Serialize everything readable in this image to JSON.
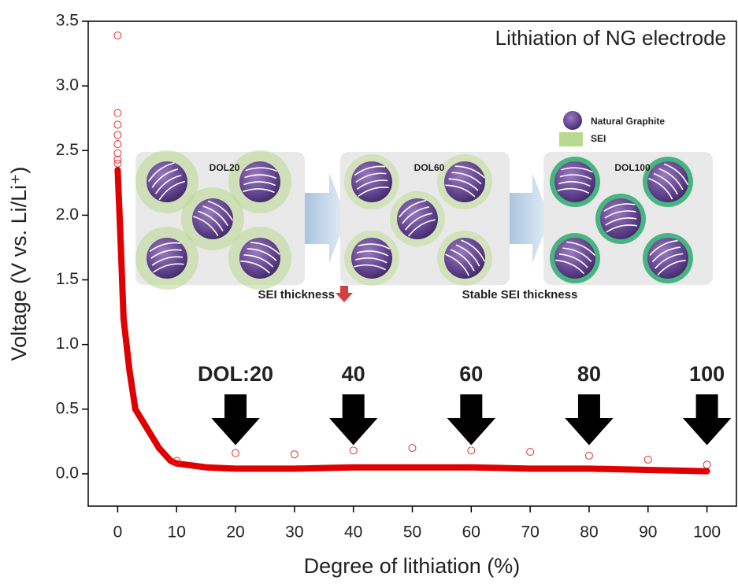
{
  "chart_data": {
    "type": "line",
    "title": "Lithiation of NG electrode",
    "xlabel": "Degree of lithiation (%)",
    "ylabel": "Voltage (V vs. Li/Li⁺)",
    "xlim": [
      -5,
      105
    ],
    "ylim": [
      -0.25,
      3.5
    ],
    "xticks": [
      0,
      10,
      20,
      30,
      40,
      50,
      60,
      70,
      80,
      90,
      100
    ],
    "yticks": [
      {
        "value": 0,
        "label": "0.0"
      },
      {
        "value": 0.5,
        "label": "0.5"
      },
      {
        "value": 1,
        "label": "1.0"
      },
      {
        "value": 1.5,
        "label": "1.5"
      },
      {
        "value": 2,
        "label": "2.0"
      },
      {
        "value": 2.5,
        "label": "2.5"
      },
      {
        "value": 3,
        "label": "3.0"
      },
      {
        "value": 3.5,
        "label": "3.5"
      }
    ],
    "series": [
      {
        "color": "#e00000",
        "marker": "none",
        "x": [
          0,
          0.5,
          1,
          2,
          3,
          5,
          7,
          9,
          10,
          15,
          20,
          30,
          40,
          50,
          60,
          70,
          80,
          90,
          100
        ],
        "values": [
          2.35,
          1.8,
          1.2,
          0.8,
          0.5,
          0.35,
          0.2,
          0.1,
          0.08,
          0.05,
          0.04,
          0.04,
          0.05,
          0.05,
          0.05,
          0.04,
          0.04,
          0.03,
          0.02
        ]
      },
      {
        "color": "#e03030",
        "marker": "circle",
        "x": [
          0,
          0,
          0,
          0,
          0,
          0,
          0,
          0,
          10,
          20,
          30,
          40,
          50,
          60,
          70,
          80,
          90,
          100
        ],
        "values": [
          3.39,
          2.79,
          2.7,
          2.62,
          2.55,
          2.48,
          2.43,
          2.4,
          0.1,
          0.16,
          0.15,
          0.18,
          0.2,
          0.18,
          0.17,
          0.14,
          0.11,
          0.07
        ]
      }
    ],
    "arrows": [
      {
        "label": "DOL:20",
        "x": 20
      },
      {
        "label": "40",
        "x": 40
      },
      {
        "label": "60",
        "x": 60
      },
      {
        "label": "80",
        "x": 80
      },
      {
        "label": "100",
        "x": 100
      }
    ],
    "inset": {
      "panels": [
        "DOL20",
        "DOL60",
        "DOL100"
      ],
      "legend": [
        "Natural Graphite",
        "SEI"
      ],
      "note_left": "SEI thickness",
      "note_right": "Stable SEI thickness"
    }
  }
}
